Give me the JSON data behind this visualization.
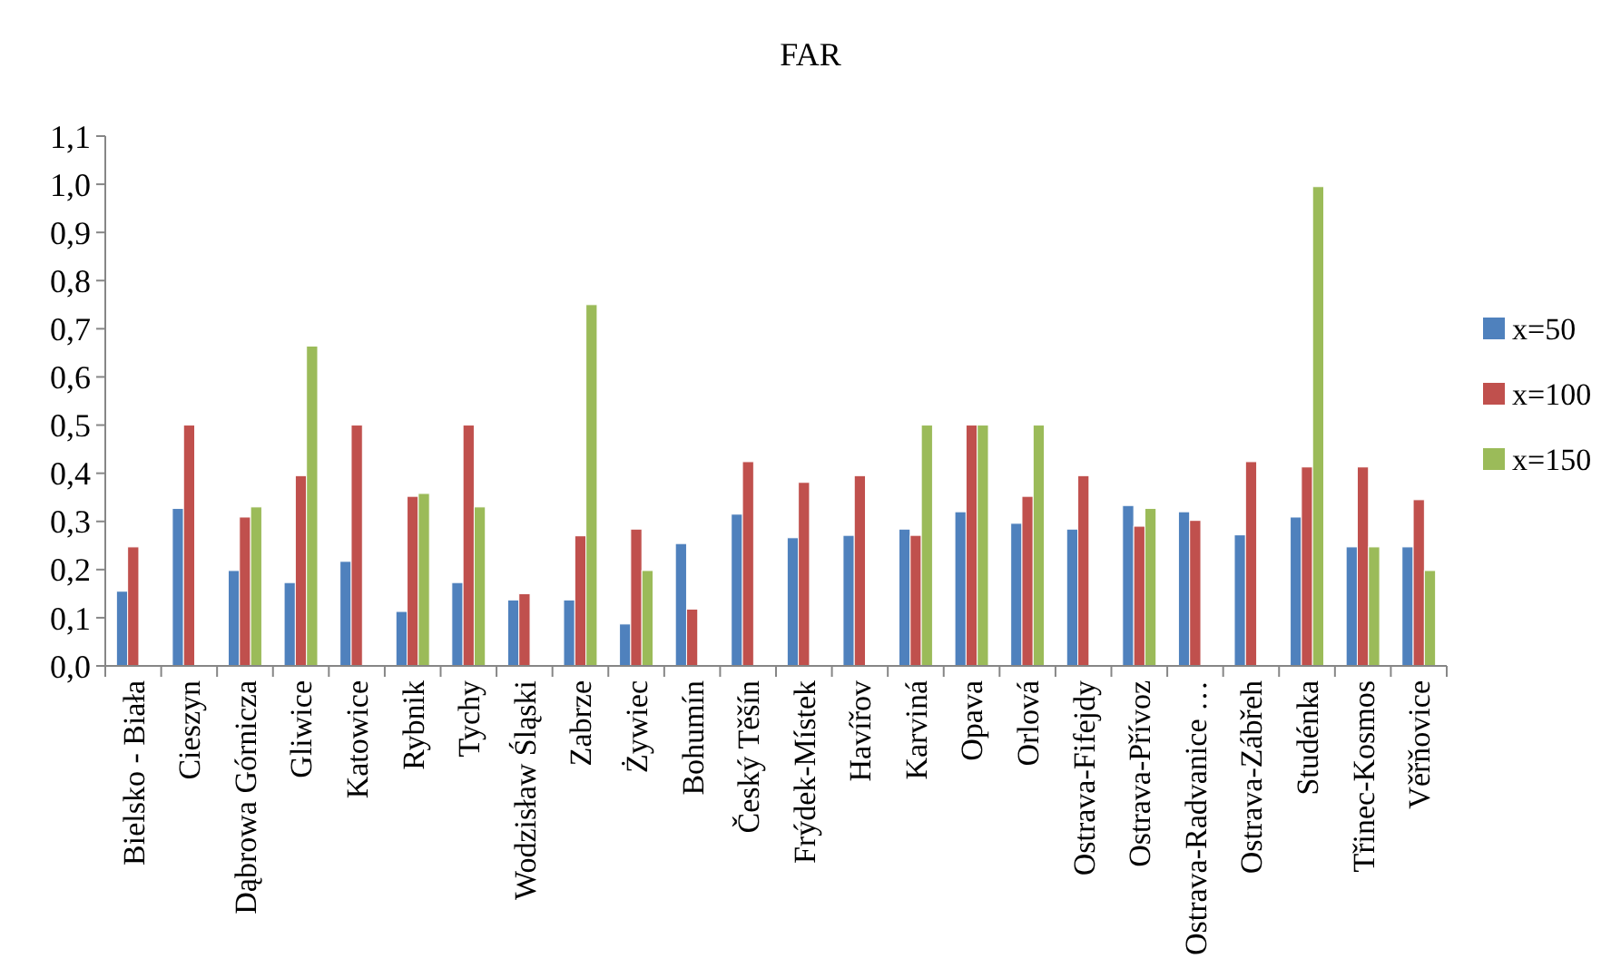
{
  "chart_data": {
    "type": "bar",
    "title": "FAR",
    "categories": [
      "Bielsko - Biała",
      "Cieszyn",
      "Dąbrowa Górnicza",
      "Gliwice",
      "Katowice",
      "Rybnik",
      "Tychy",
      "Wodzisław Śląski",
      "Zabrze",
      "Żywiec",
      "Bohumín",
      "Český Těšín",
      "Frýdek-Místek",
      "Havířov",
      "Karviná",
      "Opava",
      "Orlová",
      "Ostrava-Fifejdy",
      "Ostrava-Přívoz",
      "Ostrava-Radvanice …",
      "Ostrava-Zábřeh",
      "Studénka",
      "Třinec-Kosmos",
      "Věřňovice"
    ],
    "series": [
      {
        "name": "x=50",
        "color": "#4f81bd",
        "values": [
          0.155,
          0.327,
          0.198,
          0.173,
          0.217,
          0.113,
          0.173,
          0.137,
          0.137,
          0.087,
          0.254,
          0.315,
          0.266,
          0.271,
          0.284,
          0.32,
          0.296,
          0.284,
          0.333,
          0.32,
          0.272,
          0.309,
          0.247,
          0.247
        ]
      },
      {
        "name": "x=100",
        "color": "#c0504d",
        "values": [
          0.247,
          0.5,
          0.309,
          0.395,
          0.5,
          0.352,
          0.5,
          0.15,
          0.27,
          0.284,
          0.118,
          0.424,
          0.381,
          0.395,
          0.271,
          0.5,
          0.352,
          0.395,
          0.29,
          0.302,
          0.424,
          0.413,
          0.413,
          0.345
        ]
      },
      {
        "name": "x=150",
        "color": "#9bbb59",
        "values": [
          null,
          null,
          0.33,
          0.664,
          null,
          0.358,
          0.33,
          null,
          0.75,
          0.198,
          null,
          null,
          null,
          null,
          0.5,
          0.5,
          0.5,
          null,
          0.327,
          null,
          null,
          0.995,
          0.247,
          0.198
        ]
      }
    ],
    "ylim": [
      0,
      1.1
    ],
    "yticks": [
      {
        "value": 0,
        "label": "0,0"
      },
      {
        "value": 0.1,
        "label": "0,1"
      },
      {
        "value": 0.2,
        "label": "0,2"
      },
      {
        "value": 0.3,
        "label": "0,3"
      },
      {
        "value": 0.4,
        "label": "0,4"
      },
      {
        "value": 0.5,
        "label": "0,5"
      },
      {
        "value": 0.6,
        "label": "0,6"
      },
      {
        "value": 0.7,
        "label": "0,7"
      },
      {
        "value": 0.8,
        "label": "0,8"
      },
      {
        "value": 0.9,
        "label": "0,9"
      },
      {
        "value": 1.0,
        "label": "1,0"
      },
      {
        "value": 1.1,
        "label": "1,1"
      }
    ],
    "legend": "right"
  }
}
